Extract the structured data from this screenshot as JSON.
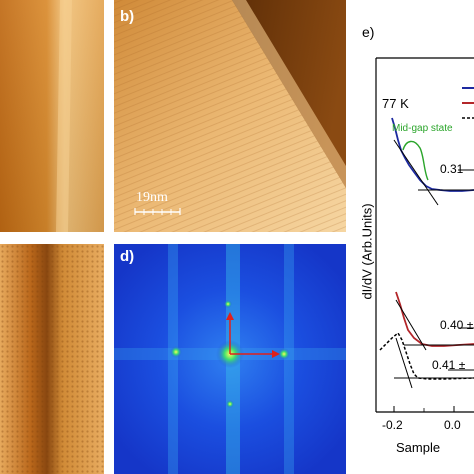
{
  "figure": {
    "panels": {
      "b": {
        "label": "b)",
        "scalebar": "19nm"
      },
      "d": {
        "label": "d)"
      },
      "e": {
        "label": "e)",
        "temperature": "77 K",
        "annotation_midgap": "Mid-gap state",
        "ylabel": "dI/dV (Arb.Units)",
        "xlabel_partial": "Sample",
        "gap_labels": [
          "0.31",
          "0.40 ±",
          "0.41 ±"
        ],
        "xticks": [
          "-0.2",
          "0.0"
        ]
      }
    },
    "colors": {
      "stm_dark": "#5a2e06",
      "stm_light": "#f3c987",
      "fft_blue": "#1a43e0",
      "curve_blue": "#1d2aa0",
      "curve_red": "#b3262a",
      "curve_black": "#000000",
      "fit_green": "#2ba52b",
      "arrow_red": "#e0201a"
    }
  }
}
